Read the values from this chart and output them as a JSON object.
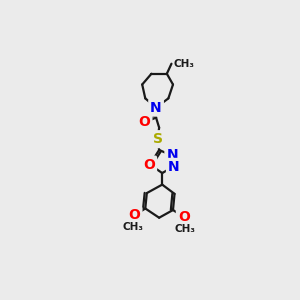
{
  "background_color": "#ebebeb",
  "atoms": {
    "N_blue": "#0000EE",
    "O_red": "#FF0000",
    "S_yellow": "#AAAA00",
    "C_black": "#1a1a1a"
  },
  "bond_color": "#1a1a1a",
  "bond_width": 1.6,
  "font_size_atom": 10,
  "fig_width": 3.0,
  "fig_height": 3.0,
  "dpi": 100,
  "xlim": [
    0,
    300
  ],
  "ylim": [
    0,
    300
  ]
}
